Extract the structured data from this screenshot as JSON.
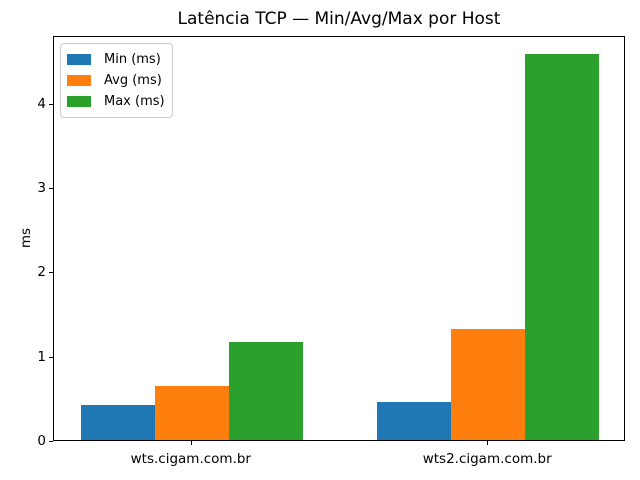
{
  "chart_data": {
    "type": "bar",
    "title": "Latência TCP — Min/Avg/Max por Host",
    "xlabel": "",
    "ylabel": "ms",
    "categories": [
      "wts.cigam.com.br",
      "wts2.cigam.com.br"
    ],
    "series": [
      {
        "name": "Min (ms)",
        "color": "#1f77b4",
        "values": [
          0.42,
          0.45
        ]
      },
      {
        "name": "Avg (ms)",
        "color": "#ff7f0e",
        "values": [
          0.64,
          1.31
        ]
      },
      {
        "name": "Max (ms)",
        "color": "#2ca02c",
        "values": [
          1.16,
          4.57
        ]
      }
    ],
    "ylim": [
      0,
      4.8
    ],
    "yticks": [
      0,
      1,
      2,
      3,
      4
    ],
    "grid": false,
    "legend_position": "upper left",
    "background_color": "#ffffff",
    "axis_color": "#000000"
  }
}
